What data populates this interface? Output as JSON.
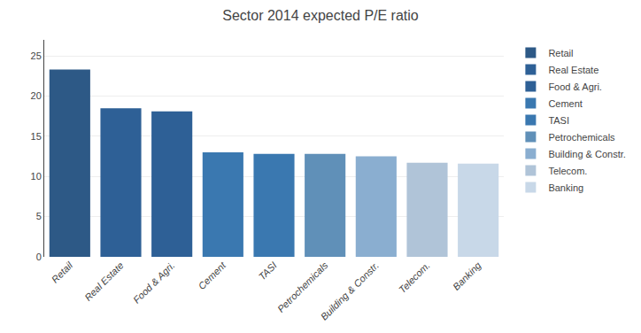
{
  "chart_data": {
    "type": "bar",
    "title": "Sector 2014 expected P/E ratio",
    "categories": [
      "Retail",
      "Real Estate",
      "Food & Agri.",
      "Cement",
      "TASI",
      "Petrochemicals",
      "Building & Constr.",
      "Telecom.",
      "Banking"
    ],
    "values": [
      23.3,
      18.5,
      18.1,
      13.0,
      12.8,
      12.8,
      12.5,
      11.7,
      11.6
    ],
    "colors": [
      "#2d5986",
      "#2e6096",
      "#2e6096",
      "#3a78b0",
      "#3a78b0",
      "#6090b8",
      "#8aaed0",
      "#b0c4d8",
      "#c8d8e8"
    ],
    "ylim": [
      0,
      27
    ],
    "yticks": [
      0,
      5,
      10,
      15,
      20,
      25
    ],
    "grid": true,
    "legend": "upper right"
  }
}
